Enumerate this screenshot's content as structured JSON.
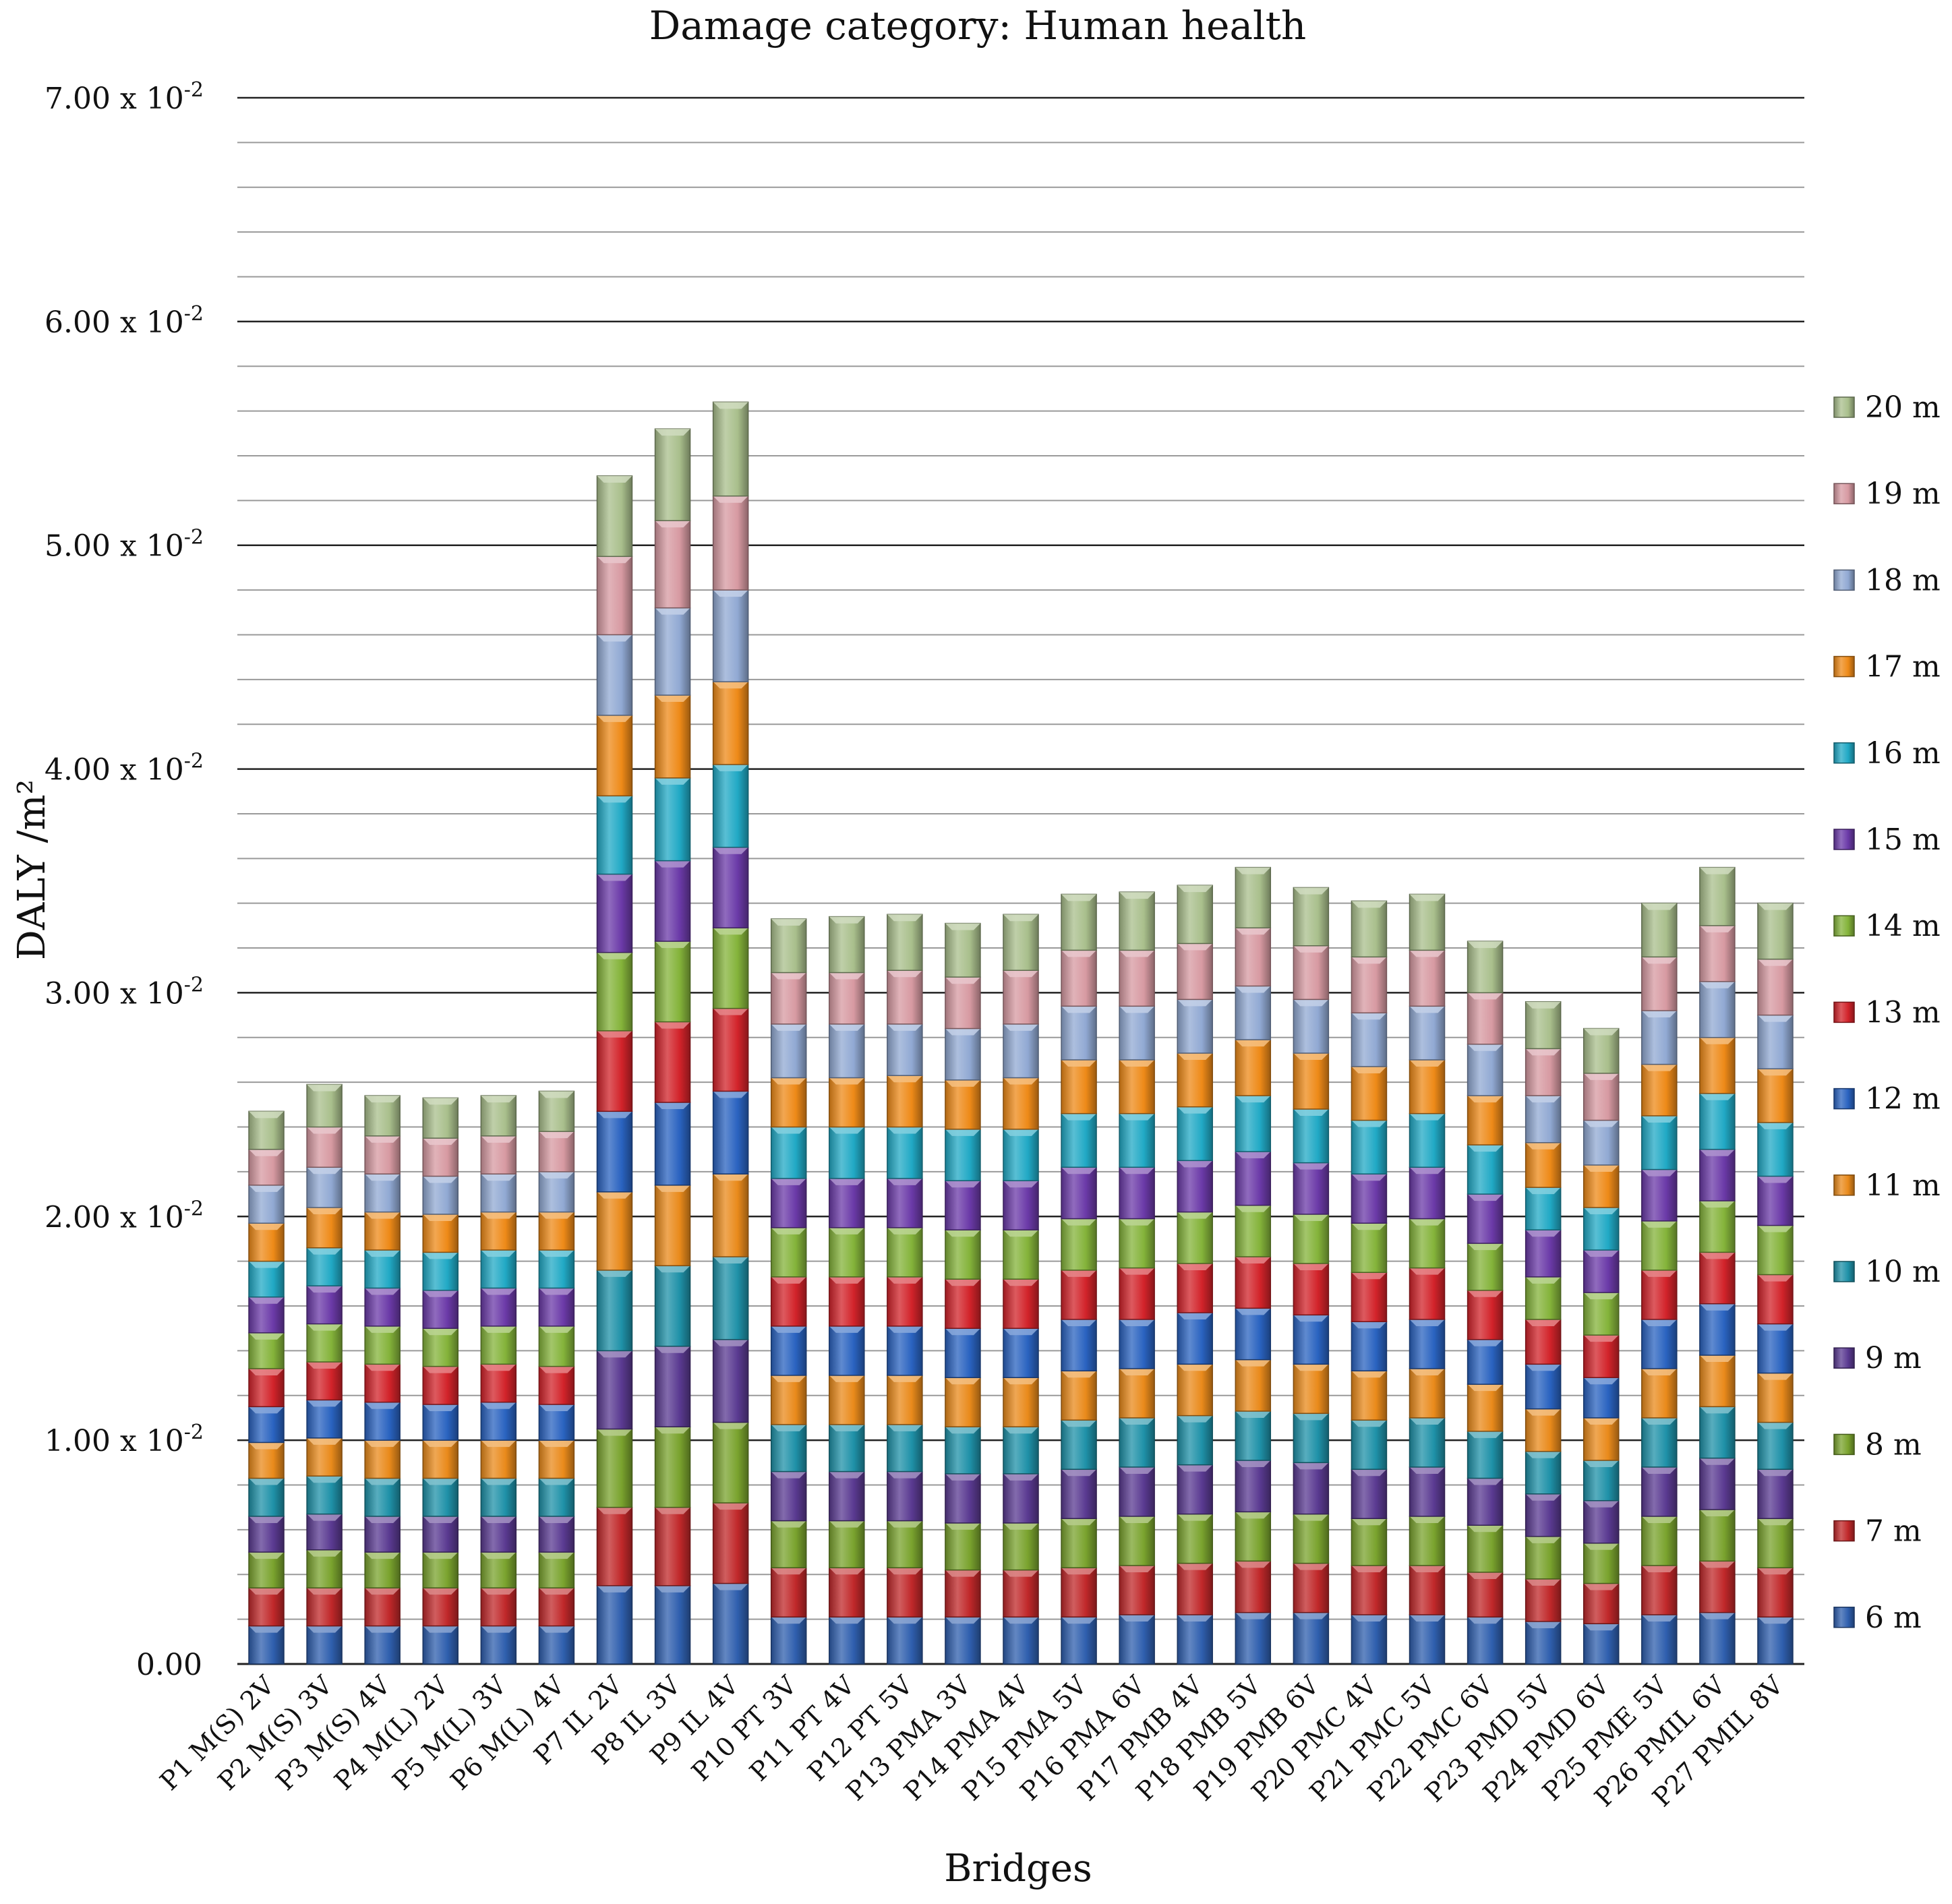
{
  "chart_data": {
    "type": "bar",
    "stacked": true,
    "title": "Damage category: Human health",
    "xlabel": "Bridges",
    "ylabel": "DALY /m²",
    "ylim": [
      0,
      0.07
    ],
    "yticks": [
      {
        "value": 0,
        "mantissa": "0.00",
        "exponent": ""
      },
      {
        "value": 0.01,
        "mantissa": "1.00 x 10",
        "exponent": "-2"
      },
      {
        "value": 0.02,
        "mantissa": "2.00 x 10",
        "exponent": "-2"
      },
      {
        "value": 0.03,
        "mantissa": "3.00 x 10",
        "exponent": "-2"
      },
      {
        "value": 0.04,
        "mantissa": "4.00 x 10",
        "exponent": "-2"
      },
      {
        "value": 0.05,
        "mantissa": "5.00 x 10",
        "exponent": "-2"
      },
      {
        "value": 0.06,
        "mantissa": "6.00 x 10",
        "exponent": "-2"
      },
      {
        "value": 0.07,
        "mantissa": "7.00 x 10",
        "exponent": "-2"
      }
    ],
    "minor_grid_step": 0.002,
    "legend_position": "right",
    "categories": [
      "P1 M(S) 2V",
      "P2 M(S) 3V",
      "P3 M(S) 4V",
      "P4 M(L) 2V",
      "P5 M(L) 3V",
      "P6 M(L) 4V",
      "P7 IL 2V",
      "P8 IL 3V",
      "P9 IL 4V",
      "P10 PT 3V",
      "P11 PT 4V",
      "P12 PT 5V",
      "P13 PMA 3V",
      "P14 PMA 4V",
      "P15 PMA 5V",
      "P16 PMA 6V",
      "P17 PMB 4V",
      "P18 PMB 5V",
      "P19 PMB 6V",
      "P20 PMC 4V",
      "P21 PMC 5V",
      "P22 PMC 6V",
      "P23 PMD 5V",
      "P24 PMD 6V",
      "P25 PME 5V",
      "P26 PMIL 6V",
      "P27 PMIL 8V"
    ],
    "series": [
      {
        "name": "6 m",
        "color": "#2f5fae",
        "values": [
          0.0017,
          0.0017,
          0.0017,
          0.0017,
          0.0017,
          0.0017,
          0.0035,
          0.0035,
          0.0036,
          0.0021,
          0.0021,
          0.0021,
          0.0021,
          0.0021,
          0.0021,
          0.0022,
          0.0022,
          0.0023,
          0.0023,
          0.0022,
          0.0022,
          0.0021,
          0.0019,
          0.0018,
          0.0022,
          0.0023,
          0.0021
        ]
      },
      {
        "name": "7 m",
        "color": "#c0282a",
        "values": [
          0.0017,
          0.0017,
          0.0017,
          0.0017,
          0.0017,
          0.0017,
          0.0035,
          0.0035,
          0.0036,
          0.0022,
          0.0022,
          0.0022,
          0.0021,
          0.0021,
          0.0022,
          0.0022,
          0.0023,
          0.0023,
          0.0022,
          0.0022,
          0.0022,
          0.002,
          0.0019,
          0.0018,
          0.0022,
          0.0023,
          0.0022
        ]
      },
      {
        "name": "8 m",
        "color": "#7aa32e",
        "values": [
          0.0016,
          0.0017,
          0.0016,
          0.0016,
          0.0016,
          0.0016,
          0.0035,
          0.0036,
          0.0036,
          0.0021,
          0.0021,
          0.0021,
          0.0021,
          0.0021,
          0.0022,
          0.0022,
          0.0022,
          0.0022,
          0.0022,
          0.0021,
          0.0022,
          0.0021,
          0.0019,
          0.0018,
          0.0022,
          0.0023,
          0.0022
        ]
      },
      {
        "name": "9 m",
        "color": "#5a3a91",
        "values": [
          0.0016,
          0.0016,
          0.0016,
          0.0016,
          0.0016,
          0.0016,
          0.0035,
          0.0036,
          0.0037,
          0.0022,
          0.0022,
          0.0022,
          0.0022,
          0.0022,
          0.0022,
          0.0022,
          0.0022,
          0.0023,
          0.0023,
          0.0022,
          0.0022,
          0.0021,
          0.0019,
          0.0019,
          0.0022,
          0.0023,
          0.0022
        ]
      },
      {
        "name": "10 m",
        "color": "#1f91a8",
        "values": [
          0.0017,
          0.0017,
          0.0017,
          0.0017,
          0.0017,
          0.0017,
          0.0036,
          0.0036,
          0.0037,
          0.0021,
          0.0021,
          0.0021,
          0.0021,
          0.0021,
          0.0022,
          0.0022,
          0.0022,
          0.0022,
          0.0022,
          0.0022,
          0.0022,
          0.0021,
          0.0019,
          0.0018,
          0.0022,
          0.0023,
          0.0021
        ]
      },
      {
        "name": "11 m",
        "color": "#e98a1b",
        "values": [
          0.0016,
          0.0017,
          0.0017,
          0.0017,
          0.0017,
          0.0017,
          0.0035,
          0.0036,
          0.0037,
          0.0022,
          0.0022,
          0.0022,
          0.0022,
          0.0022,
          0.0022,
          0.0022,
          0.0023,
          0.0023,
          0.0022,
          0.0022,
          0.0022,
          0.0021,
          0.0019,
          0.0019,
          0.0022,
          0.0023,
          0.0022
        ]
      },
      {
        "name": "12 m",
        "color": "#2a63c0",
        "values": [
          0.0016,
          0.0017,
          0.0017,
          0.0016,
          0.0017,
          0.0016,
          0.0036,
          0.0037,
          0.0037,
          0.0022,
          0.0022,
          0.0022,
          0.0022,
          0.0022,
          0.0023,
          0.0022,
          0.0023,
          0.0023,
          0.0022,
          0.0022,
          0.0022,
          0.002,
          0.002,
          0.0018,
          0.0022,
          0.0023,
          0.0022
        ]
      },
      {
        "name": "13 m",
        "color": "#d2232a",
        "values": [
          0.0017,
          0.0017,
          0.0017,
          0.0017,
          0.0017,
          0.0017,
          0.0036,
          0.0036,
          0.0037,
          0.0022,
          0.0022,
          0.0022,
          0.0022,
          0.0022,
          0.0022,
          0.0023,
          0.0022,
          0.0023,
          0.0023,
          0.0022,
          0.0023,
          0.0022,
          0.002,
          0.0019,
          0.0022,
          0.0023,
          0.0022
        ]
      },
      {
        "name": "14 m",
        "color": "#84b33a",
        "values": [
          0.0016,
          0.0017,
          0.0017,
          0.0017,
          0.0017,
          0.0018,
          0.0035,
          0.0036,
          0.0036,
          0.0022,
          0.0022,
          0.0022,
          0.0022,
          0.0022,
          0.0023,
          0.0022,
          0.0023,
          0.0023,
          0.0022,
          0.0022,
          0.0022,
          0.0021,
          0.0019,
          0.0019,
          0.0022,
          0.0023,
          0.0022
        ]
      },
      {
        "name": "15 m",
        "color": "#6b3aa8",
        "values": [
          0.0016,
          0.0017,
          0.0017,
          0.0017,
          0.0017,
          0.0017,
          0.0035,
          0.0036,
          0.0036,
          0.0022,
          0.0022,
          0.0022,
          0.0022,
          0.0022,
          0.0023,
          0.0023,
          0.0023,
          0.0024,
          0.0023,
          0.0022,
          0.0023,
          0.0022,
          0.0021,
          0.0019,
          0.0023,
          0.0023,
          0.0022
        ]
      },
      {
        "name": "16 m",
        "color": "#21a9c5",
        "values": [
          0.0016,
          0.0017,
          0.0017,
          0.0017,
          0.0017,
          0.0017,
          0.0035,
          0.0037,
          0.0037,
          0.0023,
          0.0023,
          0.0023,
          0.0023,
          0.0023,
          0.0024,
          0.0024,
          0.0024,
          0.0025,
          0.0024,
          0.0024,
          0.0024,
          0.0022,
          0.0019,
          0.0019,
          0.0024,
          0.0025,
          0.0024
        ]
      },
      {
        "name": "17 m",
        "color": "#ee8a18",
        "values": [
          0.0017,
          0.0018,
          0.0017,
          0.0017,
          0.0017,
          0.0017,
          0.0036,
          0.0037,
          0.0037,
          0.0022,
          0.0022,
          0.0023,
          0.0022,
          0.0023,
          0.0024,
          0.0024,
          0.0024,
          0.0025,
          0.0025,
          0.0024,
          0.0024,
          0.0022,
          0.002,
          0.0019,
          0.0023,
          0.0025,
          0.0024
        ]
      },
      {
        "name": "18 m",
        "color": "#91a9d3",
        "values": [
          0.0017,
          0.0018,
          0.0017,
          0.0017,
          0.0017,
          0.0018,
          0.0036,
          0.0039,
          0.0041,
          0.0024,
          0.0024,
          0.0023,
          0.0023,
          0.0024,
          0.0024,
          0.0024,
          0.0024,
          0.0024,
          0.0024,
          0.0024,
          0.0024,
          0.0023,
          0.0021,
          0.002,
          0.0024,
          0.0025,
          0.0024
        ]
      },
      {
        "name": "19 m",
        "color": "#d79aa2",
        "values": [
          0.0016,
          0.0018,
          0.0017,
          0.0017,
          0.0017,
          0.0018,
          0.0035,
          0.0039,
          0.0042,
          0.0023,
          0.0023,
          0.0024,
          0.0023,
          0.0024,
          0.0025,
          0.0025,
          0.0025,
          0.0026,
          0.0024,
          0.0025,
          0.0025,
          0.0023,
          0.0021,
          0.0021,
          0.0024,
          0.0025,
          0.0025
        ]
      },
      {
        "name": "20 m",
        "color": "#a9bf8c",
        "values": [
          0.0017,
          0.0019,
          0.0018,
          0.0018,
          0.0018,
          0.0018,
          0.0036,
          0.0041,
          0.0042,
          0.0024,
          0.0025,
          0.0025,
          0.0024,
          0.0025,
          0.0025,
          0.0026,
          0.0026,
          0.0027,
          0.0026,
          0.0025,
          0.0025,
          0.0023,
          0.0021,
          0.002,
          0.0024,
          0.0026,
          0.0025
        ]
      }
    ]
  }
}
